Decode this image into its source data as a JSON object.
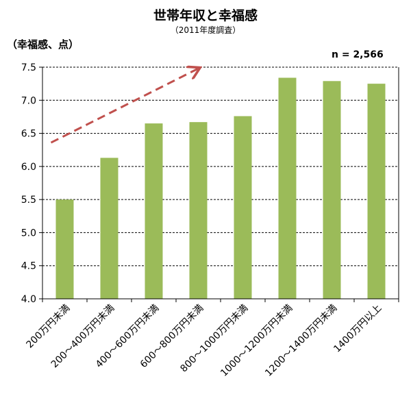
{
  "chart_data": {
    "type": "bar",
    "title": "世帯年収と幸福感",
    "subtitle": "（2011年度調査）",
    "ylabel": "（幸福感、点）",
    "xlabel": "",
    "annotation": "n = 2,566",
    "categories": [
      "200万円未満",
      "200～400万円未満",
      "400～600万円未満",
      "600～800万円未満",
      "800～1000万円未満",
      "1000～1200万円未満",
      "1200～1400万円未満",
      "1400万円以上"
    ],
    "values": [
      5.5,
      6.13,
      6.65,
      6.67,
      6.76,
      7.34,
      7.29,
      7.25
    ],
    "ylim": [
      4.0,
      7.5
    ],
    "yticks": [
      "4.0",
      "4.5",
      "5.0",
      "5.5",
      "6.0",
      "6.5",
      "7.0",
      "7.5"
    ],
    "grid": true,
    "trend_arrow": {
      "from": [
        0,
        6.36
      ],
      "to": [
        3,
        7.48
      ]
    },
    "colors": {
      "bar": "#9bbb59",
      "arrow": "#c0504d",
      "grid": "#000000"
    }
  }
}
